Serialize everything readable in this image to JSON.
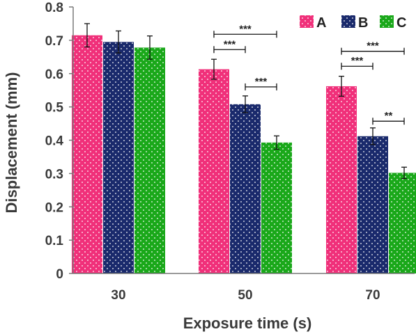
{
  "chart_data": {
    "type": "bar",
    "xlabel": "Exposure time (s)",
    "ylabel": "Displacement (mm)",
    "categories": [
      "30",
      "50",
      "70"
    ],
    "ylim": [
      0,
      0.8
    ],
    "yticks": [
      "0",
      "0.1",
      "0.2",
      "0.3",
      "0.4",
      "0.5",
      "0.6",
      "0.7",
      "0.8"
    ],
    "legend_position": "top-right",
    "grid": false,
    "pattern": "dotted",
    "series": [
      {
        "name": "A",
        "color": "#f0307a",
        "values": [
          0.715,
          0.613,
          0.562
        ],
        "errors": [
          0.035,
          0.03,
          0.03
        ]
      },
      {
        "name": "B",
        "color": "#1a2a6c",
        "values": [
          0.695,
          0.508,
          0.412
        ],
        "errors": [
          0.033,
          0.025,
          0.025
        ]
      },
      {
        "name": "C",
        "color": "#1aa81a",
        "values": [
          0.678,
          0.393,
          0.302
        ],
        "errors": [
          0.035,
          0.02,
          0.017
        ]
      }
    ],
    "significance": [
      {
        "category": 1,
        "from": 0,
        "to": 2,
        "y": 0.718,
        "label": "***"
      },
      {
        "category": 1,
        "from": 0,
        "to": 1,
        "y": 0.672,
        "label": "***"
      },
      {
        "category": 1,
        "from": 1,
        "to": 2,
        "y": 0.56,
        "label": "***"
      },
      {
        "category": 2,
        "from": 0,
        "to": 2,
        "y": 0.667,
        "label": "***"
      },
      {
        "category": 2,
        "from": 0,
        "to": 1,
        "y": 0.622,
        "label": "***"
      },
      {
        "category": 2,
        "from": 1,
        "to": 2,
        "y": 0.457,
        "label": "**"
      }
    ]
  }
}
